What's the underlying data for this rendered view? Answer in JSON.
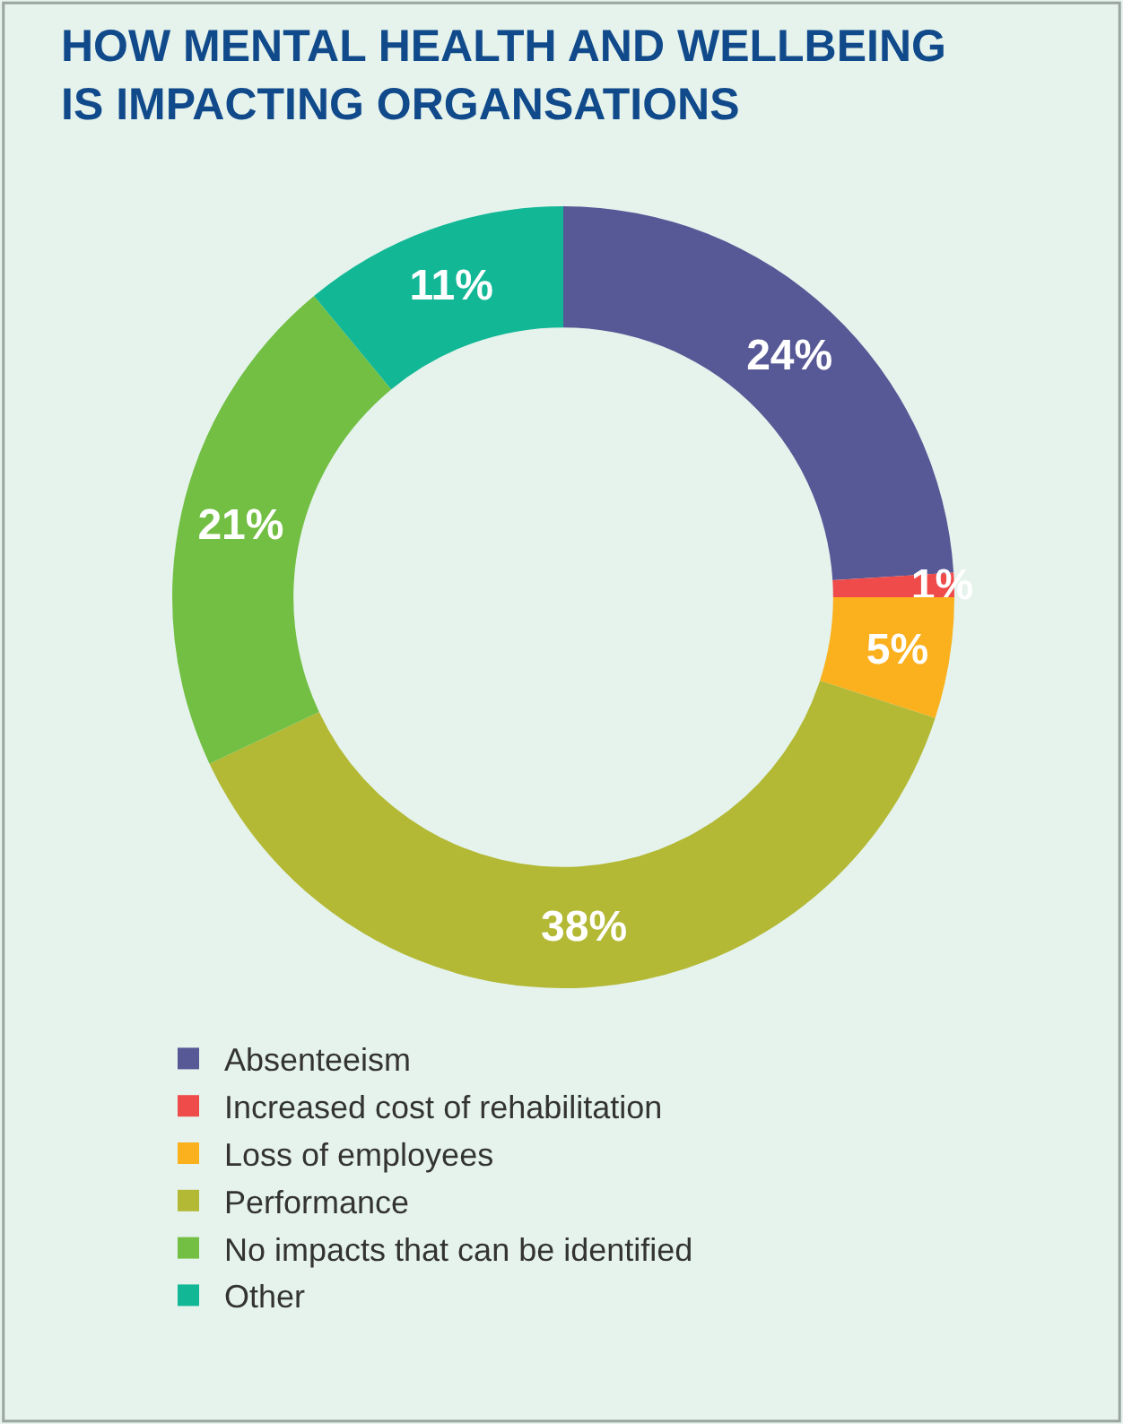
{
  "chart_data": {
    "type": "donut",
    "title": "HOW MENTAL HEALTH AND WELLBEING\nIS IMPACTING ORGANSATIONS",
    "categories": [
      "Absenteeism",
      "Increased cost of rehabilitation",
      "Loss of employees",
      "Performance",
      "No impacts that can be identified",
      "Other"
    ],
    "values": [
      24,
      1,
      5,
      38,
      21,
      11
    ],
    "colors": [
      "#575896",
      "#ef4b4b",
      "#fbb01e",
      "#b3b935",
      "#72bf44",
      "#12b796"
    ],
    "value_labels": [
      "24%",
      "1%",
      "5%",
      "38%",
      "21%",
      "11%"
    ],
    "legend": "bottom left"
  }
}
